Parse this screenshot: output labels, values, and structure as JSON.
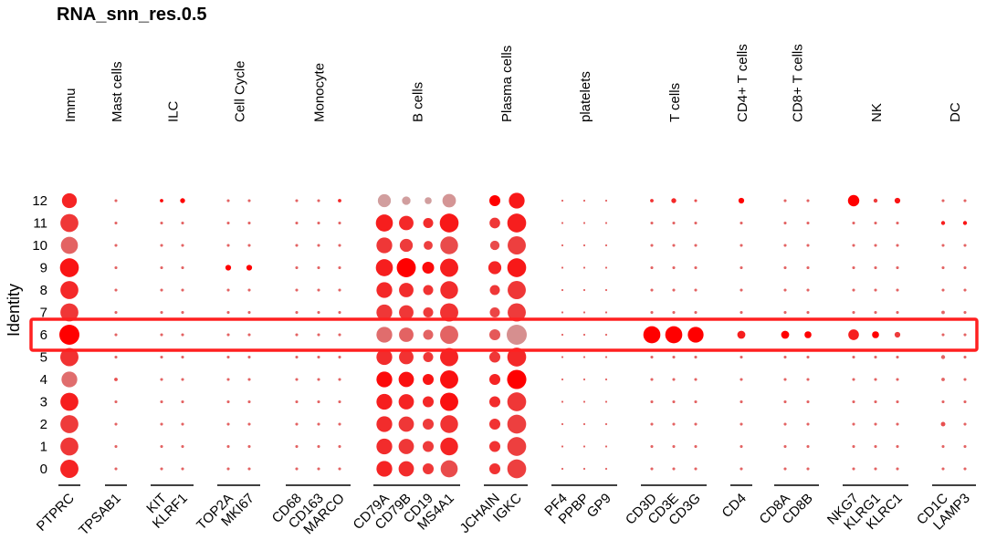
{
  "chart_data": {
    "type": "dotplot",
    "title": "RNA_snn_res.0.5",
    "ylabel": "Identity",
    "clusters": [
      "0",
      "1",
      "2",
      "3",
      "4",
      "5",
      "6",
      "7",
      "8",
      "9",
      "10",
      "11",
      "12"
    ],
    "groups": [
      {
        "name": "Immu",
        "genes": [
          "PTPRC"
        ]
      },
      {
        "name": "Mast cells",
        "genes": [
          "TPSAB1"
        ]
      },
      {
        "name": "ILC",
        "genes": [
          "KIT",
          "KLRF1"
        ]
      },
      {
        "name": "Cell Cycle",
        "genes": [
          "TOP2A",
          "MKI67"
        ]
      },
      {
        "name": "Monocyte",
        "genes": [
          "CD68",
          "CD163",
          "MARCO"
        ]
      },
      {
        "name": "B cells",
        "genes": [
          "CD79A",
          "CD79B",
          "CD19",
          "MS4A1"
        ]
      },
      {
        "name": "Plasma cells",
        "genes": [
          "JCHAIN",
          "IGKC"
        ]
      },
      {
        "name": "platelets",
        "genes": [
          "PF4",
          "PPBP",
          "GP9"
        ]
      },
      {
        "name": "T cells",
        "genes": [
          "CD3D",
          "CD3E",
          "CD3G"
        ]
      },
      {
        "name": "CD4+ T cells",
        "genes": [
          "CD4"
        ]
      },
      {
        "name": "CD8+ T cells",
        "genes": [
          "CD8A",
          "CD8B"
        ]
      },
      {
        "name": "NK",
        "genes": [
          "NKG7",
          "KLRG1",
          "KLRC1"
        ]
      },
      {
        "name": "DC",
        "genes": [
          "CD1C",
          "LAMP3"
        ]
      }
    ],
    "genes": [
      "PTPRC",
      "TPSAB1",
      "KIT",
      "KLRF1",
      "TOP2A",
      "MKI67",
      "CD68",
      "CD163",
      "MARCO",
      "CD79A",
      "CD79B",
      "CD19",
      "MS4A1",
      "JCHAIN",
      "IGKC",
      "PF4",
      "PPBP",
      "GP9",
      "CD3D",
      "CD3E",
      "CD3G",
      "CD4",
      "CD8A",
      "CD8B",
      "NKG7",
      "KLRG1",
      "KLRC1",
      "CD1C",
      "LAMP3"
    ],
    "pct_expressed_note": "dot size = percent expressed (0-100), color = average expression (0 grey to 1 red)",
    "size_matrix": [
      [
        82,
        2,
        2,
        2,
        2,
        2,
        2,
        2,
        2,
        62,
        58,
        30,
        72,
        30,
        88,
        1,
        1,
        1,
        2,
        2,
        2,
        2,
        2,
        2,
        2,
        2,
        2,
        2,
        2
      ],
      [
        80,
        2,
        2,
        2,
        2,
        2,
        2,
        2,
        2,
        62,
        58,
        30,
        78,
        30,
        88,
        1,
        1,
        1,
        2,
        2,
        2,
        2,
        2,
        2,
        2,
        2,
        2,
        2,
        2
      ],
      [
        80,
        2,
        2,
        2,
        2,
        2,
        2,
        2,
        2,
        62,
        58,
        30,
        78,
        30,
        88,
        1,
        1,
        1,
        2,
        2,
        2,
        2,
        2,
        2,
        2,
        2,
        2,
        5,
        2
      ],
      [
        80,
        2,
        2,
        2,
        2,
        2,
        2,
        2,
        2,
        62,
        58,
        30,
        82,
        30,
        88,
        1,
        1,
        1,
        2,
        2,
        2,
        2,
        2,
        2,
        2,
        2,
        2,
        2,
        2
      ],
      [
        62,
        3,
        2,
        2,
        2,
        2,
        2,
        2,
        2,
        62,
        58,
        30,
        82,
        30,
        92,
        1,
        1,
        1,
        2,
        2,
        2,
        2,
        2,
        2,
        2,
        2,
        2,
        3,
        2
      ],
      [
        82,
        2,
        2,
        2,
        2,
        2,
        2,
        2,
        2,
        62,
        52,
        25,
        82,
        30,
        88,
        1,
        1,
        1,
        2,
        2,
        2,
        2,
        2,
        2,
        2,
        2,
        2,
        4,
        2
      ],
      [
        100,
        2,
        2,
        2,
        2,
        2,
        2,
        2,
        2,
        62,
        52,
        25,
        82,
        30,
        100,
        1,
        1,
        1,
        72,
        72,
        62,
        16,
        16,
        12,
        28,
        12,
        8,
        2,
        2
      ],
      [
        80,
        2,
        2,
        2,
        2,
        2,
        2,
        2,
        2,
        62,
        52,
        25,
        82,
        25,
        82,
        1,
        1,
        1,
        2,
        2,
        2,
        2,
        2,
        2,
        2,
        2,
        2,
        3,
        2
      ],
      [
        80,
        2,
        2,
        2,
        2,
        2,
        2,
        2,
        2,
        62,
        52,
        25,
        78,
        25,
        82,
        1,
        1,
        1,
        2,
        2,
        2,
        2,
        2,
        2,
        2,
        2,
        2,
        2,
        2
      ],
      [
        88,
        2,
        2,
        2,
        8,
        8,
        2,
        2,
        2,
        72,
        90,
        35,
        82,
        42,
        88,
        1,
        1,
        1,
        2,
        2,
        2,
        2,
        2,
        2,
        2,
        2,
        2,
        2,
        2
      ],
      [
        72,
        2,
        2,
        2,
        2,
        2,
        2,
        2,
        2,
        62,
        42,
        20,
        78,
        22,
        82,
        1,
        1,
        1,
        2,
        2,
        2,
        2,
        2,
        2,
        2,
        2,
        2,
        2,
        2
      ],
      [
        80,
        2,
        2,
        2,
        2,
        2,
        2,
        2,
        2,
        72,
        52,
        25,
        88,
        28,
        88,
        1,
        1,
        1,
        2,
        2,
        2,
        2,
        2,
        2,
        2,
        2,
        2,
        4,
        4
      ],
      [
        55,
        2,
        3,
        6,
        2,
        2,
        2,
        2,
        3,
        42,
        18,
        12,
        45,
        30,
        62,
        1,
        1,
        1,
        3,
        6,
        2,
        8,
        2,
        2,
        32,
        4,
        8,
        2,
        2
      ]
    ],
    "color_matrix": [
      [
        0.82,
        0.5,
        0.5,
        0.5,
        0.5,
        0.5,
        0.5,
        0.5,
        0.5,
        0.82,
        0.78,
        0.72,
        0.62,
        0.75,
        0.68,
        0.5,
        0.5,
        0.5,
        0.5,
        0.5,
        0.5,
        0.5,
        0.5,
        0.5,
        0.5,
        0.5,
        0.5,
        0.5,
        0.5
      ],
      [
        0.72,
        0.5,
        0.5,
        0.5,
        0.5,
        0.5,
        0.5,
        0.5,
        0.5,
        0.78,
        0.72,
        0.7,
        0.82,
        0.75,
        0.68,
        0.5,
        0.5,
        0.5,
        0.5,
        0.5,
        0.5,
        0.5,
        0.5,
        0.5,
        0.5,
        0.5,
        0.5,
        0.5,
        0.5
      ],
      [
        0.7,
        0.5,
        0.5,
        0.5,
        0.5,
        0.5,
        0.5,
        0.5,
        0.5,
        0.78,
        0.72,
        0.7,
        0.75,
        0.75,
        0.68,
        0.5,
        0.5,
        0.5,
        0.5,
        0.5,
        0.5,
        0.5,
        0.5,
        0.5,
        0.5,
        0.5,
        0.5,
        0.6,
        0.5
      ],
      [
        0.85,
        0.5,
        0.5,
        0.5,
        0.5,
        0.5,
        0.5,
        0.5,
        0.5,
        0.85,
        0.82,
        0.8,
        0.92,
        0.78,
        0.72,
        0.5,
        0.5,
        0.5,
        0.5,
        0.5,
        0.5,
        0.5,
        0.5,
        0.5,
        0.5,
        0.5,
        0.5,
        0.5,
        0.5
      ],
      [
        0.45,
        0.6,
        0.5,
        0.5,
        0.5,
        0.5,
        0.5,
        0.5,
        0.5,
        0.95,
        0.92,
        0.9,
        0.92,
        0.82,
        1.0,
        0.5,
        0.5,
        0.5,
        0.5,
        0.5,
        0.5,
        0.5,
        0.5,
        0.5,
        0.5,
        0.5,
        0.5,
        0.5,
        0.5
      ],
      [
        0.75,
        0.5,
        0.5,
        0.5,
        0.5,
        0.5,
        0.5,
        0.5,
        0.5,
        0.78,
        0.75,
        0.72,
        0.82,
        0.72,
        0.8,
        0.5,
        0.5,
        0.5,
        0.5,
        0.5,
        0.5,
        0.5,
        0.5,
        0.5,
        0.5,
        0.5,
        0.5,
        0.5,
        0.5
      ],
      [
        1.0,
        0.5,
        0.5,
        0.5,
        0.5,
        0.5,
        0.5,
        0.5,
        0.5,
        0.45,
        0.5,
        0.5,
        0.5,
        0.55,
        0.28,
        0.5,
        0.5,
        0.5,
        1.0,
        1.0,
        1.0,
        0.85,
        1.0,
        1.0,
        0.85,
        1.0,
        0.7,
        0.5,
        0.5
      ],
      [
        0.72,
        0.5,
        0.5,
        0.5,
        0.5,
        0.5,
        0.5,
        0.5,
        0.5,
        0.72,
        0.72,
        0.7,
        0.75,
        0.65,
        0.7,
        0.5,
        0.5,
        0.5,
        0.5,
        0.5,
        0.5,
        0.5,
        0.5,
        0.5,
        0.5,
        0.5,
        0.5,
        0.5,
        0.5
      ],
      [
        0.8,
        0.5,
        0.5,
        0.5,
        0.5,
        0.5,
        0.5,
        0.5,
        0.5,
        0.8,
        0.78,
        0.75,
        0.78,
        0.72,
        0.72,
        0.5,
        0.5,
        0.5,
        0.5,
        0.5,
        0.5,
        0.5,
        0.5,
        0.5,
        0.5,
        0.5,
        0.5,
        0.5,
        0.5
      ],
      [
        0.9,
        0.5,
        0.5,
        0.5,
        1.0,
        1.0,
        0.5,
        0.5,
        0.5,
        0.85,
        1.0,
        0.95,
        0.85,
        0.82,
        0.88,
        0.5,
        0.5,
        0.5,
        0.5,
        0.5,
        0.5,
        0.5,
        0.5,
        0.5,
        0.5,
        0.5,
        0.5,
        0.5,
        0.5
      ],
      [
        0.5,
        0.5,
        0.5,
        0.5,
        0.5,
        0.5,
        0.5,
        0.5,
        0.5,
        0.72,
        0.7,
        0.68,
        0.62,
        0.62,
        0.68,
        0.5,
        0.5,
        0.5,
        0.5,
        0.5,
        0.5,
        0.5,
        0.5,
        0.5,
        0.5,
        0.5,
        0.5,
        0.5,
        0.5
      ],
      [
        0.72,
        0.5,
        0.5,
        0.5,
        0.5,
        0.5,
        0.5,
        0.5,
        0.5,
        0.85,
        0.8,
        0.78,
        0.88,
        0.72,
        0.85,
        0.5,
        0.5,
        0.5,
        0.5,
        0.5,
        0.5,
        0.5,
        0.5,
        0.5,
        0.5,
        0.5,
        0.5,
        0.85,
        0.9
      ],
      [
        0.82,
        0.5,
        0.95,
        1.0,
        0.5,
        0.5,
        0.5,
        0.5,
        0.8,
        0.2,
        0.2,
        0.2,
        0.25,
        1.0,
        0.88,
        0.5,
        0.5,
        0.5,
        0.75,
        0.8,
        0.6,
        1.0,
        0.5,
        0.5,
        1.0,
        0.7,
        0.9,
        0.5,
        0.5
      ]
    ],
    "highlight": {
      "cluster": "6",
      "color": "#ff2020"
    }
  }
}
